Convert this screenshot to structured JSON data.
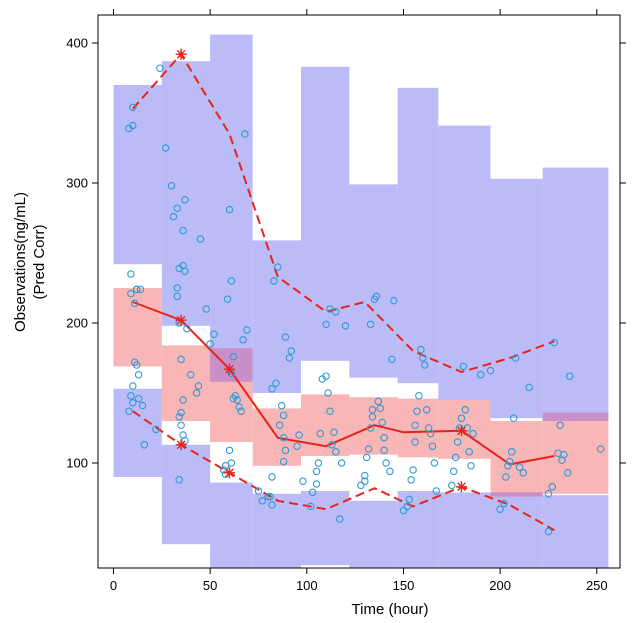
{
  "chart_data": {
    "type": "scatter",
    "title": "",
    "xlabel": "Time (hour)",
    "ylabel_line1": "Observations(ng/mL)",
    "ylabel_line2": "(Pred Corr)",
    "xlim": [
      -8,
      262
    ],
    "ylim": [
      25,
      420
    ],
    "x_ticks": [
      0,
      50,
      100,
      150,
      200,
      250
    ],
    "y_ticks": [
      100,
      200,
      300,
      400
    ],
    "grid": false,
    "legend": "none",
    "colors": {
      "upper_band": "#BBBBF8",
      "median_band": "#F8B6B6",
      "overlap_band": "#C98FC8",
      "points": "#2E9BD7",
      "lines": "#E8231A"
    },
    "series": [
      {
        "kind": "observed",
        "points": [
          [
            8,
            339
          ],
          [
            10,
            354
          ],
          [
            10,
            341
          ],
          [
            12,
            224
          ],
          [
            9,
            235
          ],
          [
            11,
            214
          ],
          [
            9,
            221
          ],
          [
            12,
            224
          ],
          [
            14,
            224
          ],
          [
            11,
            172
          ],
          [
            12,
            170
          ],
          [
            13,
            163
          ],
          [
            10,
            155
          ],
          [
            9,
            148
          ],
          [
            10,
            143
          ],
          [
            13,
            146
          ],
          [
            15,
            141
          ],
          [
            8,
            137
          ],
          [
            16,
            113
          ],
          [
            22,
            124
          ],
          [
            34,
            88
          ],
          [
            27,
            325
          ],
          [
            30,
            298
          ],
          [
            31,
            276
          ],
          [
            24,
            382
          ],
          [
            33,
            219
          ],
          [
            33,
            225
          ],
          [
            34,
            239
          ],
          [
            36,
            241
          ],
          [
            37,
            237
          ],
          [
            33,
            282
          ],
          [
            36,
            266
          ],
          [
            37,
            288
          ],
          [
            34,
            200
          ],
          [
            38,
            196
          ],
          [
            35,
            174
          ],
          [
            36,
            145
          ],
          [
            35,
            136
          ],
          [
            34,
            133
          ],
          [
            35,
            127
          ],
          [
            36,
            120
          ],
          [
            37,
            116
          ],
          [
            40,
            163
          ],
          [
            43,
            150
          ],
          [
            44,
            155
          ],
          [
            45,
            260
          ],
          [
            48,
            210
          ],
          [
            50,
            185
          ],
          [
            52,
            192
          ],
          [
            57,
            95
          ],
          [
            58,
            98
          ],
          [
            58,
            92
          ],
          [
            59,
            217
          ],
          [
            61,
            230
          ],
          [
            60,
            281
          ],
          [
            62,
            176
          ],
          [
            61,
            164
          ],
          [
            63,
            148
          ],
          [
            64,
            145
          ],
          [
            65,
            140
          ],
          [
            62,
            146
          ],
          [
            60,
            109
          ],
          [
            61,
            100
          ],
          [
            66,
            137
          ],
          [
            67,
            188
          ],
          [
            68,
            335
          ],
          [
            69,
            195
          ],
          [
            75,
            80
          ],
          [
            77,
            73
          ],
          [
            80,
            76
          ],
          [
            82,
            70
          ],
          [
            81,
            76
          ],
          [
            82,
            90
          ],
          [
            83,
            230
          ],
          [
            85,
            240
          ],
          [
            82,
            153
          ],
          [
            84,
            157
          ],
          [
            86,
            127
          ],
          [
            87,
            141
          ],
          [
            88,
            134
          ],
          [
            89,
            109
          ],
          [
            88,
            101
          ],
          [
            88,
            118
          ],
          [
            89,
            190
          ],
          [
            91,
            175
          ],
          [
            92,
            180
          ],
          [
            95,
            112
          ],
          [
            96,
            120
          ],
          [
            98,
            87
          ],
          [
            102,
            69
          ],
          [
            103,
            79
          ],
          [
            105,
            85
          ],
          [
            105,
            94
          ],
          [
            106,
            100
          ],
          [
            107,
            121
          ],
          [
            108,
            160
          ],
          [
            110,
            162
          ],
          [
            111,
            150
          ],
          [
            112,
            137
          ],
          [
            114,
            122
          ],
          [
            113,
            113
          ],
          [
            115,
            108
          ],
          [
            118,
            100
          ],
          [
            117,
            60
          ],
          [
            110,
            199
          ],
          [
            112,
            210
          ],
          [
            115,
            208
          ],
          [
            120,
            198
          ],
          [
            128,
            84
          ],
          [
            130,
            87
          ],
          [
            130,
            91
          ],
          [
            131,
            104
          ],
          [
            132,
            110
          ],
          [
            133,
            125
          ],
          [
            134,
            133
          ],
          [
            134,
            138
          ],
          [
            133,
            199
          ],
          [
            135,
            217
          ],
          [
            136,
            219
          ],
          [
            137,
            144
          ],
          [
            138,
            139
          ],
          [
            139,
            129
          ],
          [
            140,
            118
          ],
          [
            140,
            109
          ],
          [
            141,
            100
          ],
          [
            143,
            94
          ],
          [
            144,
            174
          ],
          [
            145,
            216
          ],
          [
            150,
            66
          ],
          [
            152,
            69
          ],
          [
            153,
            74
          ],
          [
            154,
            88
          ],
          [
            155,
            95
          ],
          [
            156,
            115
          ],
          [
            156,
            127
          ],
          [
            157,
            137
          ],
          [
            158,
            148
          ],
          [
            159,
            181
          ],
          [
            160,
            175
          ],
          [
            161,
            170
          ],
          [
            162,
            138
          ],
          [
            163,
            125
          ],
          [
            164,
            121
          ],
          [
            165,
            112
          ],
          [
            166,
            100
          ],
          [
            167,
            80
          ],
          [
            175,
            84
          ],
          [
            176,
            94
          ],
          [
            177,
            104
          ],
          [
            178,
            115
          ],
          [
            179,
            125
          ],
          [
            180,
            132
          ],
          [
            181,
            169
          ],
          [
            182,
            138
          ],
          [
            183,
            125
          ],
          [
            184,
            108
          ],
          [
            185,
            98
          ],
          [
            186,
            121
          ],
          [
            190,
            163
          ],
          [
            195,
            166
          ],
          [
            200,
            67
          ],
          [
            202,
            71
          ],
          [
            203,
            90
          ],
          [
            204,
            98
          ],
          [
            205,
            101
          ],
          [
            206,
            108
          ],
          [
            207,
            132
          ],
          [
            208,
            175
          ],
          [
            210,
            97
          ],
          [
            212,
            93
          ],
          [
            215,
            154
          ],
          [
            225,
            78
          ],
          [
            227,
            83
          ],
          [
            228,
            186
          ],
          [
            230,
            107
          ],
          [
            231,
            127
          ],
          [
            233,
            106
          ],
          [
            235,
            93
          ],
          [
            225,
            51
          ],
          [
            232,
            102
          ],
          [
            236,
            162
          ],
          [
            252,
            110
          ]
        ]
      },
      {
        "kind": "observed_median",
        "points": [
          [
            10,
            215
          ],
          [
            35,
            202
          ],
          [
            60,
            167
          ],
          [
            85,
            118
          ],
          [
            110,
            112
          ],
          [
            135,
            127
          ],
          [
            150,
            122
          ],
          [
            180,
            123
          ],
          [
            205,
            99
          ],
          [
            228,
            105
          ]
        ]
      },
      {
        "kind": "observed_upper_percentile",
        "points": [
          [
            10,
            353
          ],
          [
            35,
            392
          ],
          [
            60,
            335
          ],
          [
            85,
            233
          ],
          [
            110,
            208
          ],
          [
            130,
            215
          ],
          [
            155,
            180
          ],
          [
            180,
            165
          ],
          [
            205,
            175
          ],
          [
            228,
            187
          ]
        ]
      },
      {
        "kind": "observed_lower_percentile",
        "points": [
          [
            10,
            137
          ],
          [
            35,
            113
          ],
          [
            60,
            93
          ],
          [
            85,
            73
          ],
          [
            110,
            67
          ],
          [
            135,
            82
          ],
          [
            155,
            69
          ],
          [
            180,
            83
          ],
          [
            205,
            70
          ],
          [
            228,
            52
          ]
        ]
      }
    ],
    "prediction_intervals": {
      "bins": [
        {
          "x0": 0,
          "x1": 25,
          "upper": [
            242,
            370
          ],
          "median": [
            169,
            225
          ],
          "lower": [
            90,
            153
          ]
        },
        {
          "x0": 25,
          "x1": 50,
          "upper": [
            198,
            387
          ],
          "median": [
            130,
            184
          ],
          "lower": [
            42,
            113
          ]
        },
        {
          "x0": 50,
          "x1": 72,
          "upper": [
            158,
            406
          ],
          "median": [
            115,
            182
          ],
          "lower": [
            25,
            86
          ]
        },
        {
          "x0": 72,
          "x1": 97,
          "upper": [
            150,
            259
          ],
          "median": [
            98,
            139
          ],
          "lower": [
            25,
            78
          ]
        },
        {
          "x0": 97,
          "x1": 122,
          "upper": [
            173,
            383
          ],
          "median": [
            105,
            149
          ],
          "lower": [
            27,
            80
          ]
        },
        {
          "x0": 122,
          "x1": 147,
          "upper": [
            161,
            299
          ],
          "median": [
            106,
            147
          ],
          "lower": [
            25,
            73
          ]
        },
        {
          "x0": 147,
          "x1": 168,
          "upper": [
            157,
            368
          ],
          "median": [
            104,
            146
          ],
          "lower": [
            25,
            80
          ]
        },
        {
          "x0": 168,
          "x1": 195,
          "upper": [
            145,
            341
          ],
          "median": [
            103,
            145
          ],
          "lower": [
            25,
            79
          ]
        },
        {
          "x0": 195,
          "x1": 222,
          "upper": [
            132,
            303
          ],
          "median": [
            76,
            130
          ],
          "lower": [
            25,
            79
          ]
        },
        {
          "x0": 222,
          "x1": 256,
          "upper": [
            130,
            311
          ],
          "median": [
            78,
            136
          ],
          "lower": [
            25,
            77
          ]
        }
      ]
    },
    "observed_percentile_markers": {
      "median": [
        [
          35,
          202
        ],
        [
          60,
          167
        ],
        [
          180,
          123
        ]
      ],
      "upper": [
        [
          35,
          392
        ]
      ],
      "lower": [
        [
          35,
          113
        ],
        [
          60,
          93
        ],
        [
          180,
          83
        ]
      ]
    }
  }
}
